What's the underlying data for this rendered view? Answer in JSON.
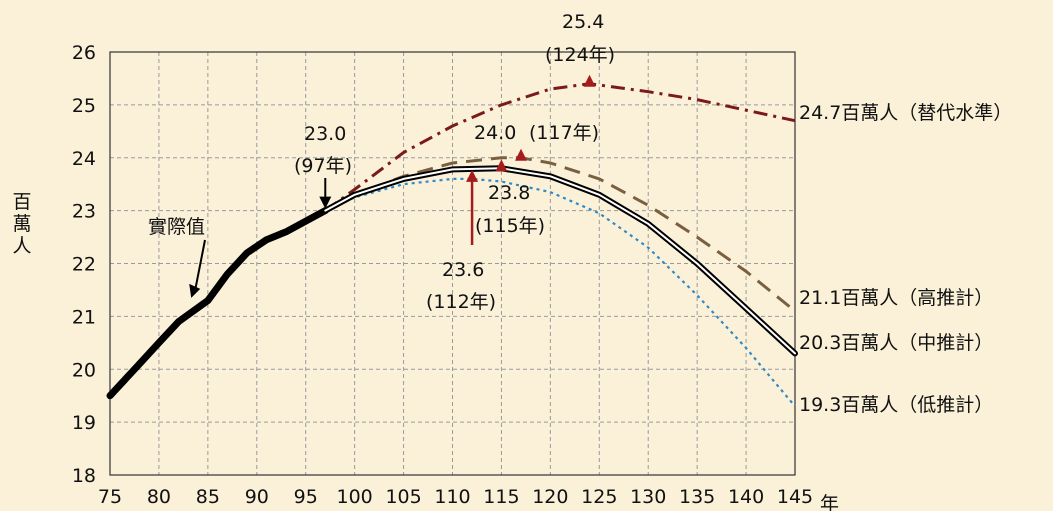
{
  "chart_data": {
    "type": "line",
    "title": "",
    "ylabel": "百萬人",
    "xunit": "年",
    "xlim": [
      75,
      145
    ],
    "ylim": [
      18,
      26
    ],
    "x_ticks": [
      75,
      80,
      85,
      90,
      95,
      100,
      105,
      110,
      115,
      120,
      125,
      130,
      135,
      140,
      145
    ],
    "y_ticks": [
      18,
      19,
      20,
      21,
      22,
      23,
      24,
      25,
      26
    ],
    "grid": true,
    "series": [
      {
        "name": "實際值",
        "style": "thick-solid",
        "color": "#000000",
        "x": [
          75,
          78,
          80,
          82,
          85,
          87,
          89,
          91,
          93,
          95,
          97
        ],
        "y": [
          19.5,
          20.1,
          20.5,
          20.9,
          21.3,
          21.8,
          22.2,
          22.45,
          22.6,
          22.8,
          23.0
        ]
      },
      {
        "name": "中推計",
        "style": "double-solid",
        "color": "#000000",
        "x": [
          97,
          100,
          105,
          110,
          115,
          120,
          125,
          130,
          135,
          140,
          145
        ],
        "y": [
          23.0,
          23.3,
          23.6,
          23.78,
          23.8,
          23.65,
          23.3,
          22.75,
          22.0,
          21.15,
          20.3
        ]
      },
      {
        "name": "高推計",
        "style": "long-dash",
        "color": "#7a6040",
        "x": [
          97,
          100,
          105,
          110,
          115,
          117,
          120,
          125,
          130,
          135,
          140,
          145
        ],
        "y": [
          23.0,
          23.3,
          23.65,
          23.9,
          24.0,
          24.0,
          23.9,
          23.6,
          23.1,
          22.5,
          21.85,
          21.1
        ]
      },
      {
        "name": "低推計",
        "style": "dotted",
        "color": "#2e8ac8",
        "x": [
          97,
          100,
          105,
          110,
          112,
          115,
          120,
          125,
          130,
          135,
          140,
          145
        ],
        "y": [
          23.0,
          23.25,
          23.5,
          23.6,
          23.6,
          23.55,
          23.35,
          22.95,
          22.3,
          21.4,
          20.4,
          19.3
        ]
      },
      {
        "name": "替代水準",
        "style": "dash-dot",
        "color": "#7a1a1a",
        "x": [
          97,
          100,
          105,
          110,
          115,
          120,
          124,
          130,
          135,
          140,
          145
        ],
        "y": [
          23.0,
          23.4,
          24.1,
          24.6,
          25.0,
          25.3,
          25.4,
          25.25,
          25.1,
          24.9,
          24.7
        ]
      }
    ],
    "peaks": [
      {
        "x": 124,
        "y": 25.4,
        "value": "25.4",
        "year": "(124年)"
      },
      {
        "x": 117,
        "y": 24.0,
        "value": "24.0",
        "year": "(117年)"
      },
      {
        "x": 115,
        "y": 23.8,
        "value": "23.8",
        "year": "(115年)"
      },
      {
        "x": 112,
        "y": 23.6,
        "value": "23.6",
        "year": "(112年)"
      }
    ],
    "annotations": {
      "start_value": "23.0",
      "start_year": "(97年)",
      "actual_label": "實際值"
    },
    "end_labels": [
      "24.7百萬人（替代水準）",
      "21.1百萬人（高推計）",
      "20.3百萬人（中推計）",
      "19.3百萬人（低推計）"
    ]
  },
  "colors": {
    "background": "#fbf1d9",
    "grid": "#9a9a9a",
    "peak_marker": "#a51c1c"
  }
}
